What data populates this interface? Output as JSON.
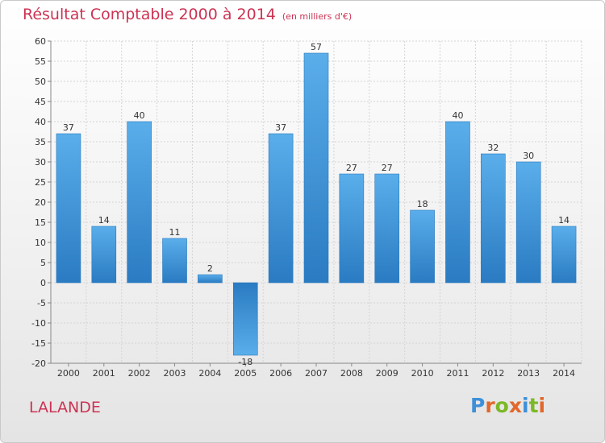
{
  "title": "Résultat Comptable 2000 à 2014",
  "subtitle": "(en milliers d'€)",
  "commune": "LALANDE",
  "logo": {
    "letters": [
      "P",
      "r",
      "o",
      "x",
      "i",
      "t",
      "i"
    ],
    "colors": [
      "#3d8fd8",
      "#e2672a",
      "#7cb826",
      "#e2672a",
      "#3d8fd8",
      "#7cb826",
      "#e2672a"
    ]
  },
  "colors": {
    "title": "#cc3353",
    "bar_light": "#5aaeea",
    "bar_dark": "#2a7bc2",
    "grid": "#d4d4d4"
  },
  "chart_data": {
    "type": "bar",
    "title": "Résultat Comptable 2000 à 2014",
    "subtitle": "(en milliers d'€)",
    "categories": [
      "2000",
      "2001",
      "2002",
      "2003",
      "2004",
      "2005",
      "2006",
      "2007",
      "2008",
      "2009",
      "2010",
      "2011",
      "2012",
      "2013",
      "2014"
    ],
    "values": [
      37,
      14,
      40,
      11,
      2,
      -18,
      37,
      57,
      27,
      27,
      18,
      40,
      32,
      30,
      14
    ],
    "ylim": [
      -20,
      60
    ],
    "yticks": [
      -20,
      -15,
      -10,
      -5,
      0,
      5,
      10,
      15,
      20,
      25,
      30,
      35,
      40,
      45,
      50,
      55,
      60
    ],
    "grid": true,
    "legend": "none"
  }
}
